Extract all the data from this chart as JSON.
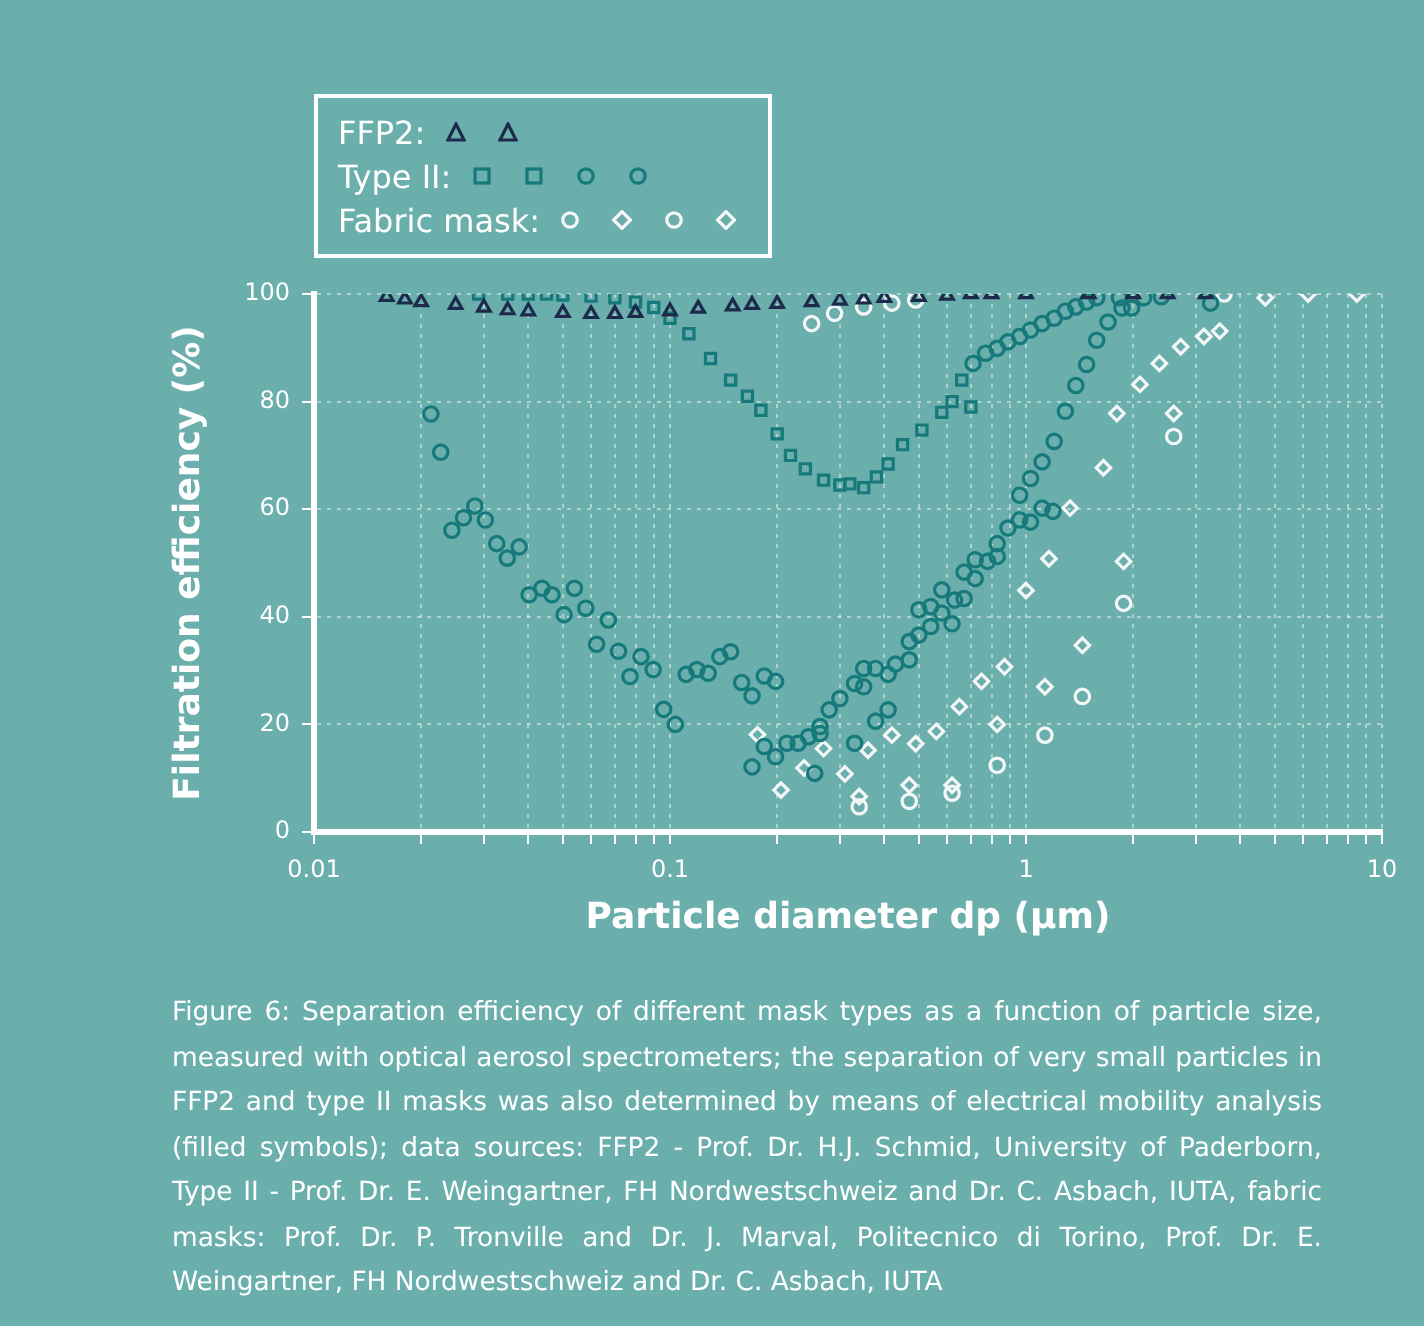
{
  "chart_data": {
    "type": "scatter",
    "xlabel": "Particle diameter dp (µm)",
    "ylabel": "Filtration efficiency (%)",
    "log": "x",
    "xlim": [
      0.01,
      10
    ],
    "ylim": [
      0,
      100
    ],
    "xticks": [
      0.01,
      {
        "value": 0.02,
        "label": null
      },
      {
        "value": 0.03,
        "label": null
      },
      {
        "value": 0.04,
        "label": null
      },
      {
        "value": 0.05,
        "label": null
      },
      {
        "value": 0.06,
        "label": null
      },
      {
        "value": 0.07,
        "label": null
      },
      {
        "value": 0.08,
        "label": null
      },
      {
        "value": 0.09,
        "label": null
      },
      0.1,
      {
        "value": 0.2,
        "label": null
      },
      {
        "value": 0.3,
        "label": null
      },
      {
        "value": 0.4,
        "label": null
      },
      {
        "value": 0.5,
        "label": null
      },
      {
        "value": 0.6,
        "label": null
      },
      {
        "value": 0.7,
        "label": null
      },
      {
        "value": 0.8,
        "label": null
      },
      {
        "value": 0.9,
        "label": null
      },
      1,
      {
        "value": 2,
        "label": null
      },
      {
        "value": 3,
        "label": null
      },
      {
        "value": 4,
        "label": null
      },
      {
        "value": 5,
        "label": null
      },
      {
        "value": 6,
        "label": null
      },
      {
        "value": 7,
        "label": null
      },
      {
        "value": 8,
        "label": null
      },
      {
        "value": 9,
        "label": null
      },
      10
    ],
    "yticks": [
      0,
      20,
      40,
      60,
      80,
      100
    ],
    "grid": true,
    "legend": "top left",
    "series": [
      {
        "name": "FFP2:",
        "color": "#1d2a4c",
        "marker": "triangle",
        "x": [
          0.17,
          0.2,
          0.25,
          0.3,
          0.35,
          0.4,
          0.5,
          0.6,
          0.7,
          0.8,
          1,
          1.5,
          2,
          2.5,
          3.2
        ],
        "values": [
          98,
          98.2,
          98.5,
          98.8,
          99,
          99.3,
          99.5,
          99.7,
          100,
          100,
          100,
          100,
          100,
          100,
          100
        ]
      },
      {
        "color": "#1d2a4c",
        "marker": "triangle",
        "x": [
          0.016,
          0.018,
          0.02,
          0.025,
          0.03,
          0.035,
          0.04,
          0.05,
          0.06,
          0.07,
          0.08,
          0.1,
          0.12,
          0.15
        ],
        "values": [
          99.5,
          99,
          98.5,
          98,
          97.5,
          97,
          96.8,
          96.5,
          96.3,
          96.3,
          96.5,
          96.8,
          97.3,
          97.7
        ]
      },
      {
        "name": "Type II:",
        "color": "#16797c",
        "marker": "square",
        "x": [
          0.218,
          0.24,
          0.27,
          0.3,
          0.32,
          0.35,
          0.38,
          0.41,
          0.45,
          0.51,
          0.58,
          0.62,
          0.66,
          0.7
        ],
        "values": [
          70,
          67.5,
          65.4,
          64.5,
          64.7,
          64,
          66,
          68.4,
          72,
          74.7,
          78,
          80,
          84,
          79
        ]
      },
      {
        "color": "#16797c",
        "marker": "square",
        "x": [
          0.029,
          0.035,
          0.04,
          0.045,
          0.05,
          0.06,
          0.07,
          0.08,
          0.09,
          0.1,
          0.113,
          0.13,
          0.148,
          0.165,
          0.18,
          0.2
        ],
        "values": [
          100,
          100,
          100,
          100,
          99.8,
          99.6,
          99.3,
          98.5,
          97.5,
          95.5,
          92.6,
          88,
          84,
          81,
          78.4,
          74
        ]
      },
      {
        "color": "#16797c",
        "marker": "circle",
        "x": [
          0.17,
          0.184,
          0.198,
          0.213,
          0.229,
          0.245,
          0.264,
          0.28,
          0.3,
          0.33,
          0.35,
          0.378,
          0.41,
          0.47,
          0.5,
          0.54,
          0.58,
          0.63,
          0.67,
          0.72,
          0.83,
          0.96,
          1.03,
          1.11,
          1.2,
          1.29,
          1.38,
          1.48,
          1.58,
          1.7,
          1.86,
          1.98,
          2.14,
          2.4,
          3.3,
          0.71,
          0.77,
          0.83,
          0.89,
          0.96,
          1.03,
          1.11,
          1.2,
          1.29,
          1.38,
          1.48,
          1.58,
          1.83
        ],
        "values": [
          12.1,
          15.9,
          14,
          16.5,
          16.5,
          17.7,
          19.6,
          22.7,
          24.8,
          27.6,
          30.4,
          30.4,
          29.3,
          32,
          36.6,
          38.2,
          40.7,
          43.1,
          43.4,
          47.1,
          53.6,
          62.6,
          65.7,
          68.8,
          72.6,
          78.2,
          83,
          86.9,
          91.4,
          94.8,
          97.4,
          97.4,
          99.3,
          99.5,
          98.3,
          87.1,
          89,
          89.9,
          91.1,
          92.1,
          93.3,
          94.5,
          95.5,
          96.8,
          97.6,
          98.5,
          99.3,
          99.3
        ]
      },
      {
        "color": "#16797c",
        "marker": "circle",
        "x": [
          0.0213,
          0.0227,
          0.0244,
          0.0263,
          0.0283,
          0.0303,
          0.0326,
          0.0349,
          0.0377,
          0.0402,
          0.0437,
          0.0466,
          0.0504,
          0.0539,
          0.058,
          0.0622,
          0.0671,
          0.0717,
          0.0772,
          0.0829,
          0.0897,
          0.096,
          0.1035,
          0.111,
          0.119,
          0.128,
          0.138,
          0.148,
          0.159,
          0.17,
          0.184,
          0.198,
          0.255,
          0.264,
          0.33,
          0.35,
          0.378,
          0.41,
          0.43,
          0.47,
          0.5,
          0.54,
          0.58,
          0.62,
          0.67,
          0.72,
          0.78,
          0.83,
          0.89,
          0.96,
          1.03,
          1.11,
          1.19
        ],
        "values": [
          77.7,
          70.6,
          56.1,
          58.4,
          60.6,
          58,
          53.6,
          50.9,
          53,
          44.1,
          45.3,
          44.1,
          40.4,
          45.3,
          41.6,
          34.9,
          39.4,
          33.6,
          28.9,
          32.6,
          30.2,
          22.8,
          20,
          29.3,
          30.2,
          29.5,
          32.6,
          33.5,
          27.8,
          25.3,
          29,
          28,
          10.9,
          18.3,
          16.5,
          27,
          20.6,
          22.7,
          31.2,
          35.4,
          41.3,
          41.9,
          45,
          38.7,
          48.3,
          50.6,
          50.3,
          51.2,
          56.5,
          58,
          57.6,
          60.2,
          59.6
        ]
      },
      {
        "name": "Fabric mask:",
        "color": "#f4f7f7",
        "marker": "circle",
        "x": [
          0.25,
          0.29,
          0.35,
          0.42,
          0.49,
          3.6
        ],
        "values": [
          94.5,
          96.4,
          97.6,
          98.3,
          98.9,
          100
        ]
      },
      {
        "color": "#f4f7f7",
        "marker": "diamond",
        "x": [
          0.34,
          0.47,
          0.62,
          0.83,
          1.13,
          1.44,
          1.88,
          2.6,
          3.5,
          4.7,
          6.2,
          8.5
        ],
        "values": [
          6.6,
          8.7,
          8.7,
          20,
          27,
          34.7,
          50.3,
          77.8,
          93.1,
          99.3,
          100,
          100
        ]
      },
      {
        "color": "#f4f7f7",
        "marker": "circle",
        "x": [
          0.34,
          0.47,
          0.62,
          0.83,
          1.13,
          1.44,
          1.88,
          2.6
        ],
        "values": [
          4.7,
          5.7,
          7.2,
          12.4,
          18,
          25.2,
          42.5,
          73.5
        ]
      },
      {
        "color": "#f4f7f7",
        "marker": "diamond",
        "x": [
          0.176,
          0.205,
          0.238,
          0.27,
          0.31,
          0.36,
          0.42,
          0.49,
          0.56,
          0.65,
          0.75,
          0.87,
          1.0,
          1.16,
          1.33,
          1.65,
          1.8,
          2.09,
          2.37,
          2.72,
          3.16
        ],
        "values": [
          18.1,
          7.8,
          11.9,
          15.5,
          10.8,
          15.2,
          18,
          16.4,
          18.7,
          23.3,
          28,
          30.7,
          44.9,
          50.8,
          60.2,
          67.7,
          77.8,
          83.2,
          87.1,
          90.2,
          92.1
        ]
      }
    ],
    "annotations": [
      "Figure 6: Separation efficiency of different mask types as a function of particle size, measured with optical aerosol spectrometers; the separation of very small particles in FFP2 and type II masks was also determined by means of electrical mobility analysis (filled symbols); data sources: FFP2 - Prof. Dr. H.J. Schmid, University of Paderborn, Type II - Prof. Dr. E. Weingartner, FH Nordwestschweiz and Dr. C. Asbach, IUTA, fabric masks: Prof. Dr. P. Tronville and Dr. J. Marval, Politecnico di Torino, Prof. Dr. E. Weingartner, FH Nordwestschweiz and Dr. C. Asbach, IUTA"
    ]
  }
}
